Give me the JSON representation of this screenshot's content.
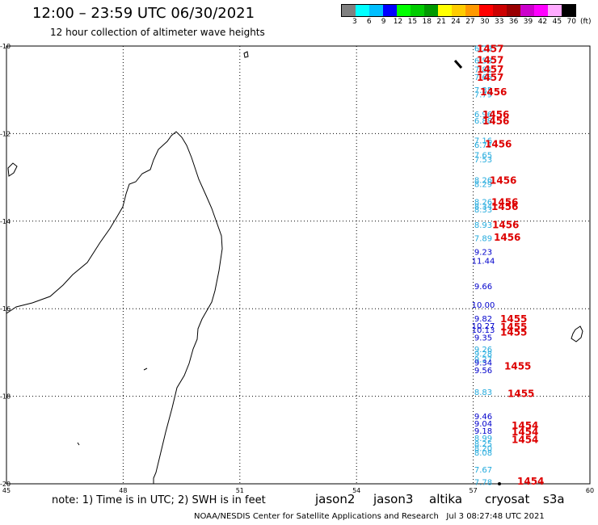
{
  "header": {
    "title": "12:00  –  23:59 UTC 06/30/2021",
    "subtitle": "12 hour collection of altimeter wave heights"
  },
  "colorbar": {
    "colors": [
      "#808080",
      "#00ffff",
      "#00bfff",
      "#0000ff",
      "#00ff00",
      "#00cc00",
      "#009900",
      "#ffff00",
      "#ffcc00",
      "#ff9900",
      "#ff0000",
      "#cc0000",
      "#990000",
      "#cc00cc",
      "#ff00ff",
      "#ffaaff",
      "#000000"
    ],
    "labels": [
      "3",
      "6",
      "9",
      "12",
      "15",
      "18",
      "21",
      "24",
      "27",
      "30",
      "33",
      "36",
      "39",
      "42",
      "45",
      "70"
    ],
    "unit": "(ft)"
  },
  "map": {
    "lon_ticks": [
      "45",
      "48",
      "51",
      "54",
      "57",
      "60"
    ],
    "lat_ticks": [
      "-10",
      "-12",
      "-14",
      "-16",
      "-18",
      "-20"
    ],
    "lon_range": [
      45,
      60
    ],
    "lat_range": [
      -20,
      -10
    ]
  },
  "observations": {
    "points": [
      {
        "lat": -10.05,
        "h": "6.28",
        "c": "#22aadd"
      },
      {
        "lat": -10.32,
        "h": "6.58",
        "c": "#22aadd"
      },
      {
        "lat": -10.53,
        "h": "7.81",
        "c": "#22aadd"
      },
      {
        "lat": -10.7,
        "h": "7.65",
        "c": "#22aadd"
      },
      {
        "lat": -11.0,
        "h": "7.35",
        "c": "#22aadd"
      },
      {
        "lat": -11.1,
        "h": "7.79",
        "c": "#22aadd"
      },
      {
        "lat": -11.55,
        "h": "6.96",
        "c": "#22aadd"
      },
      {
        "lat": -11.7,
        "h": "6.88",
        "c": "#22aadd"
      },
      {
        "lat": -12.15,
        "h": "7.16",
        "c": "#22aadd"
      },
      {
        "lat": -12.25,
        "h": "6.77",
        "c": "#22aadd"
      },
      {
        "lat": -12.48,
        "h": "7.65",
        "c": "#22aadd"
      },
      {
        "lat": -12.58,
        "h": "7.53",
        "c": "#22aadd"
      },
      {
        "lat": -13.05,
        "h": "8.26",
        "c": "#22aadd"
      },
      {
        "lat": -13.15,
        "h": "8.29",
        "c": "#22aadd"
      },
      {
        "lat": -13.55,
        "h": "8.26",
        "c": "#22aadd"
      },
      {
        "lat": -13.65,
        "h": "8.34",
        "c": "#22aadd"
      },
      {
        "lat": -13.73,
        "h": "8.33",
        "c": "#22aadd"
      },
      {
        "lat": -14.08,
        "h": "8.93",
        "c": "#22aadd"
      },
      {
        "lat": -14.38,
        "h": "7.89",
        "c": "#22aadd"
      },
      {
        "lat": -14.7,
        "h": "9.23",
        "c": "#0000cc"
      },
      {
        "lat": -14.9,
        "h": "11.44",
        "c": "#0000cc"
      },
      {
        "lat": -15.48,
        "h": "9.66",
        "c": "#0000cc"
      },
      {
        "lat": -15.9,
        "h": "10.00",
        "c": "#0000cc"
      },
      {
        "lat": -16.22,
        "h": "9.82",
        "c": "#0000cc"
      },
      {
        "lat": -16.38,
        "h": "10.27",
        "c": "#0000cc"
      },
      {
        "lat": -16.48,
        "h": "10.13",
        "c": "#0000cc"
      },
      {
        "lat": -16.65,
        "h": "9.35",
        "c": "#0000cc"
      },
      {
        "lat": -16.92,
        "h": "9.26",
        "c": "#22aadd"
      },
      {
        "lat": -17.02,
        "h": "9.28",
        "c": "#22aadd"
      },
      {
        "lat": -17.15,
        "h": "9.27",
        "c": "#22aadd"
      },
      {
        "lat": -17.22,
        "h": "9.34",
        "c": "#0000cc"
      },
      {
        "lat": -17.4,
        "h": "9.56",
        "c": "#0000cc"
      },
      {
        "lat": -17.9,
        "h": "8.83",
        "c": "#22aadd"
      },
      {
        "lat": -18.45,
        "h": "9.46",
        "c": "#0000cc"
      },
      {
        "lat": -18.62,
        "h": "9.04",
        "c": "#0000cc"
      },
      {
        "lat": -18.78,
        "h": "9.18",
        "c": "#0000cc"
      },
      {
        "lat": -18.95,
        "h": "8.99",
        "c": "#22aadd"
      },
      {
        "lat": -19.08,
        "h": "8.25",
        "c": "#22aadd"
      },
      {
        "lat": -19.18,
        "h": "8.20",
        "c": "#22aadd"
      },
      {
        "lat": -19.28,
        "h": "8.08",
        "c": "#22aadd"
      },
      {
        "lat": -19.67,
        "h": "7.67",
        "c": "#22aadd"
      },
      {
        "lat": -19.95,
        "h": "7.78",
        "c": "#22aadd"
      }
    ],
    "times": [
      {
        "lat": -10.05,
        "t": "1457"
      },
      {
        "lat": -10.3,
        "t": "1457"
      },
      {
        "lat": -10.52,
        "t": "1457"
      },
      {
        "lat": -10.7,
        "t": "1457"
      },
      {
        "lat": -11.03,
        "t": "1456"
      },
      {
        "lat": -11.55,
        "t": "1456"
      },
      {
        "lat": -11.7,
        "t": "1456"
      },
      {
        "lat": -12.22,
        "t": "1456"
      },
      {
        "lat": -13.05,
        "t": "1456"
      },
      {
        "lat": -13.55,
        "t": "1456"
      },
      {
        "lat": -13.65,
        "t": "1456"
      },
      {
        "lat": -14.07,
        "t": "1456"
      },
      {
        "lat": -14.35,
        "t": "1456"
      },
      {
        "lat": -16.22,
        "t": "1455"
      },
      {
        "lat": -16.4,
        "t": "1455"
      },
      {
        "lat": -16.52,
        "t": "1455"
      },
      {
        "lat": -17.3,
        "t": "1455"
      },
      {
        "lat": -17.92,
        "t": "1455"
      },
      {
        "lat": -18.65,
        "t": "1454"
      },
      {
        "lat": -18.8,
        "t": "1454"
      },
      {
        "lat": -18.98,
        "t": "1454"
      },
      {
        "lat": -19.93,
        "t": "1454"
      }
    ]
  },
  "legend": {
    "note": "note: 1) Time is in UTC; 2) SWH is in feet",
    "satellites": [
      {
        "name": "jason2",
        "color": "#0000cc"
      },
      {
        "name": "jason3",
        "color": "#009900"
      },
      {
        "name": "altika",
        "color": "#ff9900"
      },
      {
        "name": "cryosat",
        "color": "#dd0000"
      },
      {
        "name": "s3a",
        "color": "#880000"
      }
    ]
  },
  "footer": {
    "credit": "NOAA/NESDIS Center for Satellite Applications and Research",
    "timestamp": "Jul  3 08:27:48 UTC 2021"
  }
}
